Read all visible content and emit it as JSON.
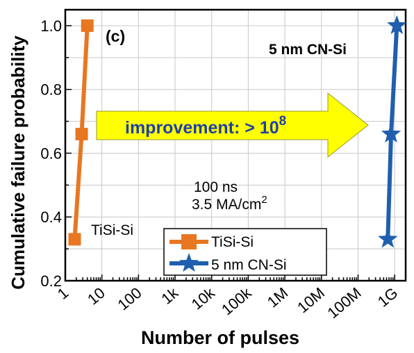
{
  "chart_data": {
    "type": "line",
    "panel_label": "(c)",
    "xlabel": "Number of pulses",
    "ylabel": "Cumulative failure probability",
    "x_scale": "log",
    "xlim": [
      1,
      2000000000
    ],
    "ylim": [
      0.2,
      1.05
    ],
    "x_ticks": [
      {
        "value": 1,
        "label": "1"
      },
      {
        "value": 10,
        "label": "10"
      },
      {
        "value": 100,
        "label": "100"
      },
      {
        "value": 1000,
        "label": "1k"
      },
      {
        "value": 10000,
        "label": "10k"
      },
      {
        "value": 100000,
        "label": "100k"
      },
      {
        "value": 1000000,
        "label": "1M"
      },
      {
        "value": 10000000,
        "label": "10M"
      },
      {
        "value": 100000000,
        "label": "100M"
      },
      {
        "value": 1000000000,
        "label": "1G"
      }
    ],
    "y_ticks": [
      {
        "value": 0.2,
        "label": "0.2"
      },
      {
        "value": 0.4,
        "label": "0.4"
      },
      {
        "value": 0.6,
        "label": "0.6"
      },
      {
        "value": 0.8,
        "label": "0.8"
      },
      {
        "value": 1.0,
        "label": "1.0"
      }
    ],
    "grid": true,
    "legend_position": "bottom-center",
    "series": [
      {
        "name": "TiSi-Si",
        "color": "#e87722",
        "marker": "square",
        "points": [
          {
            "x": 1.8,
            "y": 0.33
          },
          {
            "x": 2.8,
            "y": 0.66
          },
          {
            "x": 4.0,
            "y": 1.0
          }
        ]
      },
      {
        "name": "5 nm CN-Si",
        "color": "#1f5fae",
        "marker": "star",
        "points": [
          {
            "x": 650000000,
            "y": 0.33
          },
          {
            "x": 800000000,
            "y": 0.66
          },
          {
            "x": 1150000000,
            "y": 1.0
          }
        ]
      }
    ],
    "annotations": {
      "series_label_left": "TiSi-Si",
      "series_label_right": "5 nm CN-Si",
      "arrow_text": "improvement: > 10",
      "arrow_exponent": "8",
      "condition_line1": "100 ns",
      "condition_line2": "3.5 MA/cm",
      "condition_exponent": "2"
    },
    "colors": {
      "arrow_fill": "#ffff00",
      "arrow_text": "#1f3fa8",
      "grid": "#c8c8c8"
    }
  }
}
